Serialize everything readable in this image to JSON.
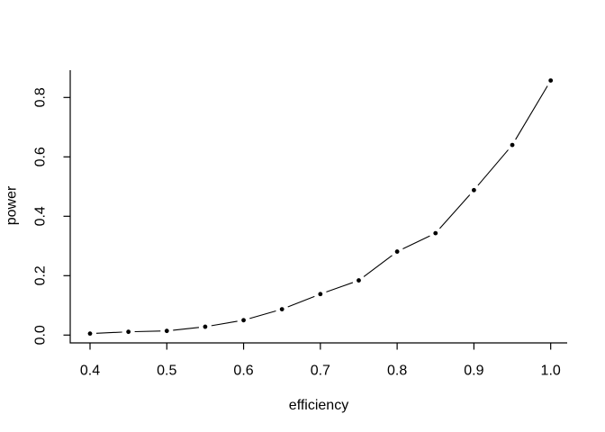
{
  "chart_data": {
    "type": "line",
    "title": "",
    "xlabel": "efficiency",
    "ylabel": "power",
    "series": [
      {
        "name": "power",
        "x": [
          0.4,
          0.45,
          0.5,
          0.55,
          0.6,
          0.65,
          0.7,
          0.75,
          0.8,
          0.85,
          0.9,
          0.95,
          1.0
        ],
        "y": [
          0.005,
          0.011,
          0.014,
          0.028,
          0.05,
          0.087,
          0.138,
          0.184,
          0.281,
          0.343,
          0.488,
          0.64,
          0.857
        ]
      }
    ],
    "x_ticks": [
      0.4,
      0.5,
      0.6,
      0.7,
      0.8,
      0.9,
      1.0
    ],
    "x_tick_labels": [
      "0.4",
      "0.5",
      "0.6",
      "0.7",
      "0.8",
      "0.9",
      "1.0"
    ],
    "y_ticks": [
      0.0,
      0.2,
      0.4,
      0.6,
      0.8
    ],
    "y_tick_labels": [
      "0.0",
      "0.2",
      "0.4",
      "0.6",
      "0.8"
    ],
    "xlim": [
      0.376,
      1.024
    ],
    "ylim": [
      -0.029,
      0.891
    ],
    "grid": false,
    "legend": false,
    "marker": "filled-circle",
    "line_style": "segments-with-gaps-around-points (R type='b')",
    "colors": {
      "background": "#ffffff",
      "axis": "#000000",
      "points": "#000000",
      "line": "#000000",
      "text": "#000000"
    }
  }
}
